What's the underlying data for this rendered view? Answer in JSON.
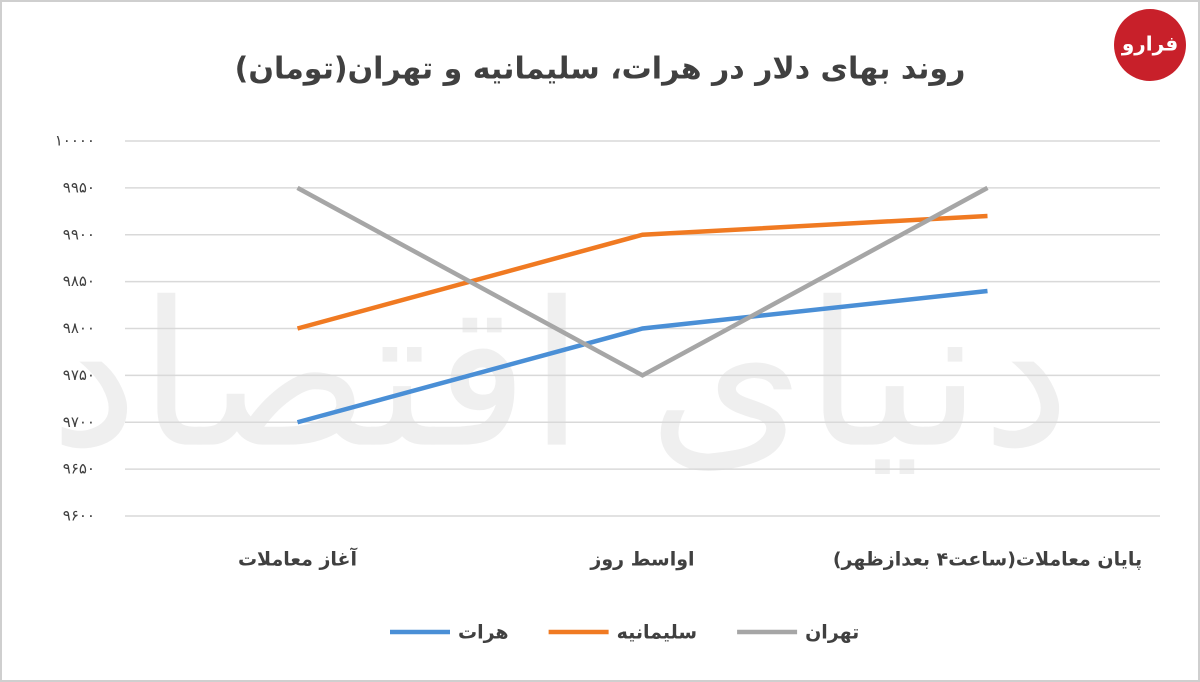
{
  "logo": "فرارو",
  "watermark": "دنیای اقتصاد",
  "chart_data": {
    "type": "line",
    "title": "روند بهای دلار در هرات، سلیمانیه و تهران(تومان)",
    "categories": [
      "آغاز معاملات",
      "اواسط روز",
      "پایان معاملات(ساعت۴ بعدازظهر)"
    ],
    "series": [
      {
        "name": "هرات",
        "color": "#4a8fd6",
        "values": [
          9700,
          9800,
          9840
        ]
      },
      {
        "name": "سلیمانیه",
        "color": "#f07a22",
        "values": [
          9800,
          9900,
          9920
        ]
      },
      {
        "name": "تهران",
        "color": "#a6a6a6",
        "values": [
          9950,
          9750,
          9950
        ]
      }
    ],
    "ylim": [
      9600,
      10000
    ],
    "yticks": [
      {
        "value": 9600,
        "label": "۹۶۰۰"
      },
      {
        "value": 9650,
        "label": "۹۶۵۰"
      },
      {
        "value": 9700,
        "label": "۹۷۰۰"
      },
      {
        "value": 9750,
        "label": "۹۷۵۰"
      },
      {
        "value": 9800,
        "label": "۹۸۰۰"
      },
      {
        "value": 9850,
        "label": "۹۸۵۰"
      },
      {
        "value": 9900,
        "label": "۹۹۰۰"
      },
      {
        "value": 9950,
        "label": "۹۹۵۰"
      },
      {
        "value": 10000,
        "label": "۱۰۰۰۰"
      }
    ],
    "grid": true,
    "legend": "bottom"
  }
}
